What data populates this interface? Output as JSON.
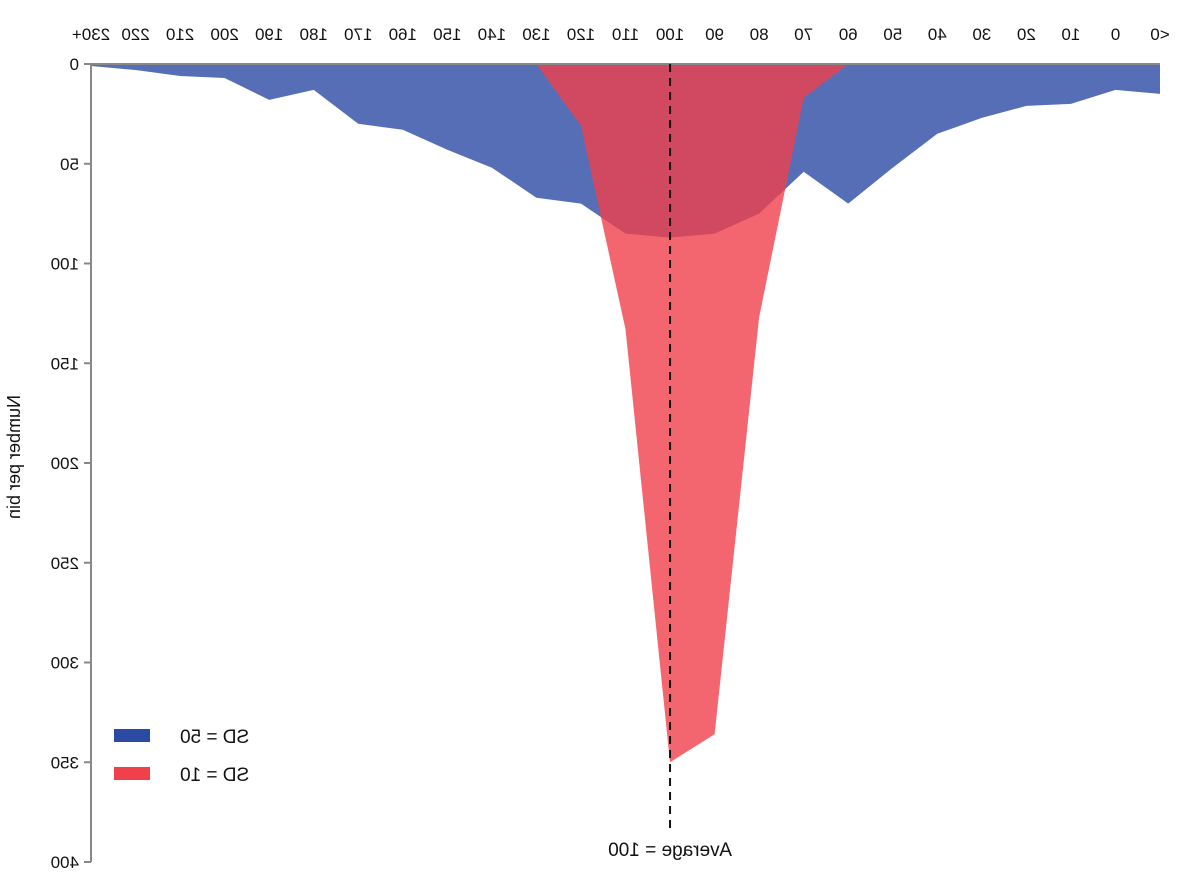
{
  "chart_data": {
    "type": "area",
    "title": "",
    "xlabel": "",
    "ylabel": "Number per bin",
    "categories": [
      "<0",
      "0",
      "10",
      "20",
      "30",
      "40",
      "50",
      "60",
      "70",
      "80",
      "90",
      "100",
      "110",
      "120",
      "130",
      "140",
      "150",
      "160",
      "170",
      "180",
      "190",
      "200",
      "210",
      "220",
      "230+"
    ],
    "ylim": [
      0,
      400
    ],
    "yticks": [
      0,
      50,
      100,
      150,
      200,
      250,
      300,
      350,
      400
    ],
    "series": [
      {
        "name": "SD = 50",
        "color": "#2a4aa3",
        "values": [
          15,
          13,
          20,
          21,
          27,
          35,
          52,
          70,
          54,
          75,
          85,
          87,
          85,
          70,
          67,
          52,
          43,
          33,
          30,
          13,
          18,
          7,
          6,
          3,
          1
        ]
      },
      {
        "name": "SD = 10",
        "color": "#f0404b",
        "values": [
          0,
          0,
          0,
          0,
          0,
          0,
          0,
          0,
          17,
          127,
          336,
          350,
          133,
          31,
          0,
          0,
          0,
          0,
          0,
          0,
          0,
          0,
          0,
          0,
          0
        ]
      }
    ],
    "reference_line": {
      "x": "100",
      "label": "Average = 100",
      "style": "dashed"
    },
    "legend": {
      "position": "bottom-right",
      "entries": [
        "SD = 50",
        "SD = 10"
      ]
    },
    "grid": false,
    "mirrored": true
  }
}
